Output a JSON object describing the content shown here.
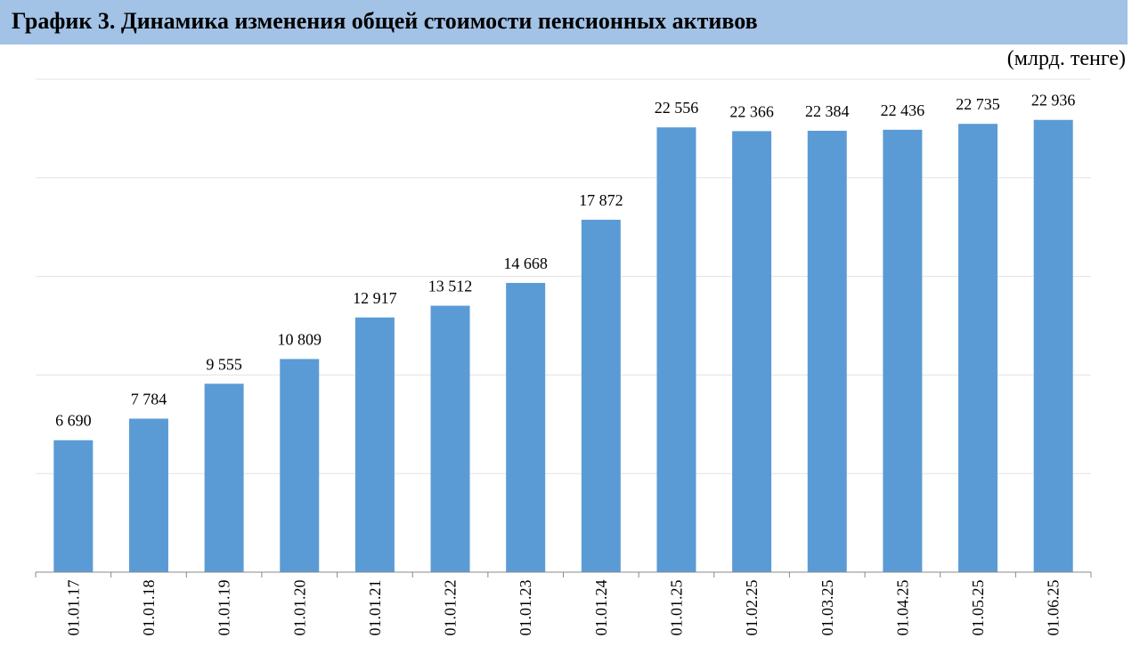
{
  "header": {
    "title": "График 3. Динамика изменения общей стоимости пенсионных активов",
    "unit": "(млрд. тенге)"
  },
  "colors": {
    "bar": "#5b9bd5",
    "title_bg": "#a2c2e6",
    "grid": "#e3e3e3",
    "axis": "#888888"
  },
  "chart_data": {
    "type": "bar",
    "title": "График 3. Динамика изменения общей стоимости пенсионных активов",
    "ylabel": "(млрд. тенге)",
    "xlabel": "",
    "categories": [
      "01.01.17",
      "01.01.18",
      "01.01.19",
      "01.01.20",
      "01.01.21",
      "01.01.22",
      "01.01.23",
      "01.01.24",
      "01.01.25",
      "01.02.25",
      "01.03.25",
      "01.04.25",
      "01.05.25",
      "01.06.25"
    ],
    "values": [
      6690,
      7784,
      9555,
      10809,
      12917,
      13512,
      14668,
      17872,
      22556,
      22366,
      22384,
      22436,
      22735,
      22936
    ],
    "data_labels": [
      "6 690",
      "7 784",
      "9 555",
      "10 809",
      "12 917",
      "13 512",
      "14 668",
      "17 872",
      "22 556",
      "22 366",
      "22 384",
      "22 436",
      "22 735",
      "22 936"
    ],
    "ylim": [
      0,
      25000
    ],
    "grid": true,
    "legend": "none"
  }
}
